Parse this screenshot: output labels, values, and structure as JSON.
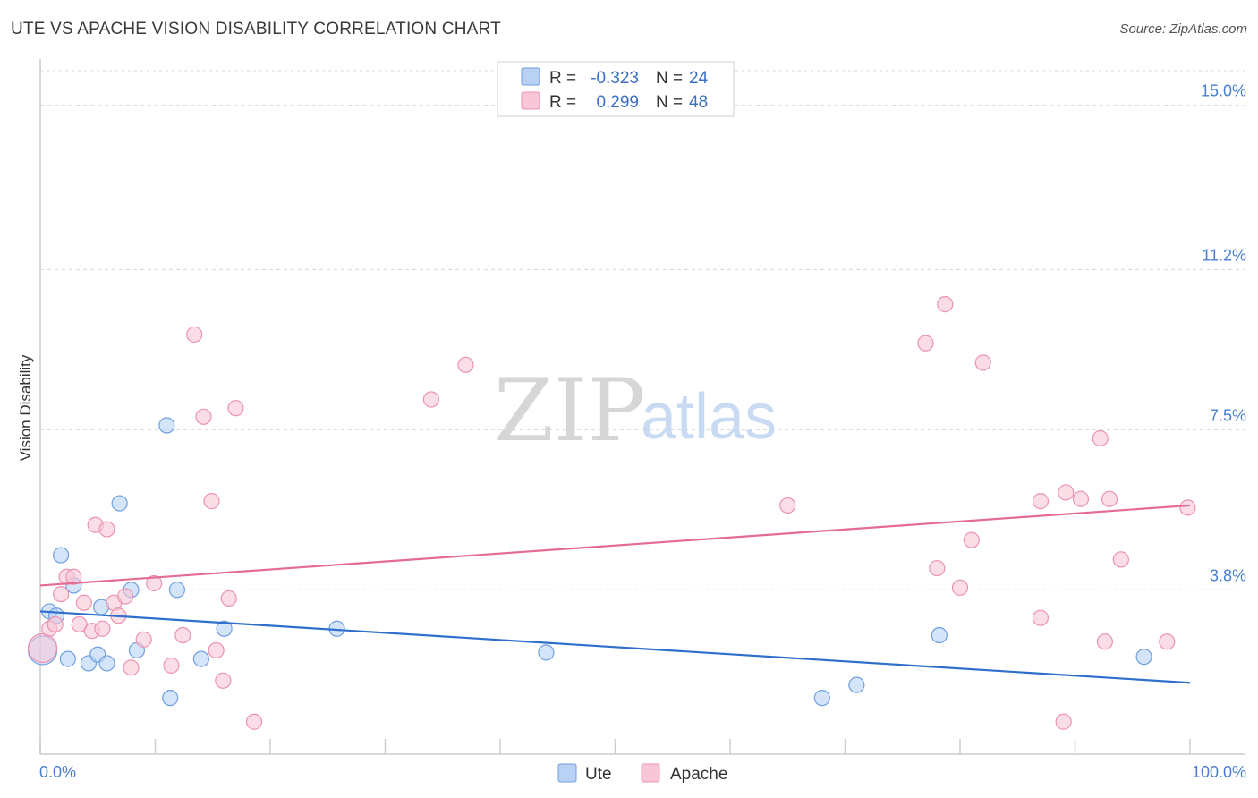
{
  "title": "UTE VS APACHE VISION DISABILITY CORRELATION CHART",
  "source": "Source: ZipAtlas.com",
  "watermark": {
    "zip": "ZIP",
    "atlas": "atlas"
  },
  "colors": {
    "ute_fill": "#b8d2f5",
    "ute_stroke": "#6f9fe0",
    "ute_line": "#2e6fcc",
    "apache_fill": "#f8c6d6",
    "apache_stroke": "#eb93b0",
    "apache_line": "#e36b94",
    "grid": "#d8d8d8",
    "axis": "#cccccc"
  },
  "legend": {
    "rows": [
      {
        "series": "Ute",
        "r_label": "R =",
        "r_value": "-0.323",
        "n_label": "N =",
        "n_value": "24"
      },
      {
        "series": "Apache",
        "r_label": "R =",
        "r_value": "0.299",
        "n_label": "N =",
        "n_value": "48"
      }
    ]
  },
  "chart_data": {
    "type": "scatter",
    "title": "UTE VS APACHE VISION DISABILITY CORRELATION CHART",
    "xlabel": "",
    "ylabel": "Vision Disability",
    "xlim": [
      0,
      100
    ],
    "ylim": [
      0,
      15.8
    ],
    "x_tick_labels": [
      "0.0%",
      "100.0%"
    ],
    "y_ticks": [
      3.8,
      7.5,
      11.2,
      15.0
    ],
    "y_tick_labels": [
      "3.8%",
      "7.5%",
      "11.2%",
      "15.0%"
    ],
    "bottom_legend": [
      "Ute",
      "Apache"
    ],
    "series": [
      {
        "name": "Ute",
        "trend": {
          "x0": 0,
          "y0": 3.3,
          "x1": 100,
          "y1": 1.65
        },
        "points": [
          [
            0.2,
            2.4
          ],
          [
            0.8,
            3.3
          ],
          [
            1.4,
            3.2
          ],
          [
            1.8,
            4.6
          ],
          [
            2.4,
            2.2
          ],
          [
            2.9,
            3.9
          ],
          [
            4.2,
            2.1
          ],
          [
            5.0,
            2.3
          ],
          [
            5.3,
            3.4
          ],
          [
            5.8,
            2.1
          ],
          [
            6.9,
            5.8
          ],
          [
            7.9,
            3.8
          ],
          [
            8.4,
            2.4
          ],
          [
            11.0,
            7.6
          ],
          [
            11.3,
            1.3
          ],
          [
            11.9,
            3.8
          ],
          [
            14.0,
            2.2
          ],
          [
            16.0,
            2.9
          ],
          [
            25.8,
            2.9
          ],
          [
            44.0,
            2.35
          ],
          [
            68.0,
            1.3
          ],
          [
            71.0,
            1.6
          ],
          [
            78.2,
            2.75
          ],
          [
            96.0,
            2.25
          ]
        ]
      },
      {
        "name": "Apache",
        "trend": {
          "x0": 0,
          "y0": 3.9,
          "x1": 100,
          "y1": 5.75
        },
        "points": [
          [
            0.2,
            2.45
          ],
          [
            0.8,
            2.9
          ],
          [
            1.3,
            3.0
          ],
          [
            1.8,
            3.7
          ],
          [
            2.3,
            4.1
          ],
          [
            2.9,
            4.1
          ],
          [
            3.4,
            3.0
          ],
          [
            3.8,
            3.5
          ],
          [
            4.5,
            2.85
          ],
          [
            4.8,
            5.3
          ],
          [
            5.4,
            2.9
          ],
          [
            5.8,
            5.2
          ],
          [
            6.4,
            3.5
          ],
          [
            6.8,
            3.2
          ],
          [
            7.4,
            3.65
          ],
          [
            7.9,
            2.0
          ],
          [
            9.0,
            2.65
          ],
          [
            9.9,
            3.95
          ],
          [
            11.4,
            2.05
          ],
          [
            12.4,
            2.75
          ],
          [
            13.4,
            9.7
          ],
          [
            14.2,
            7.8
          ],
          [
            14.9,
            5.85
          ],
          [
            15.3,
            2.4
          ],
          [
            15.9,
            1.7
          ],
          [
            16.4,
            3.6
          ],
          [
            17.0,
            8.0
          ],
          [
            18.6,
            0.75
          ],
          [
            34.0,
            8.2
          ],
          [
            37.0,
            9.0
          ],
          [
            65.0,
            5.75
          ],
          [
            77.0,
            9.5
          ],
          [
            78.0,
            4.3
          ],
          [
            78.7,
            10.4
          ],
          [
            80.0,
            3.85
          ],
          [
            81.0,
            4.95
          ],
          [
            82.0,
            9.05
          ],
          [
            87.0,
            5.85
          ],
          [
            87.0,
            3.15
          ],
          [
            89.0,
            0.75
          ],
          [
            89.2,
            6.05
          ],
          [
            90.5,
            5.9
          ],
          [
            92.2,
            7.3
          ],
          [
            92.6,
            2.6
          ],
          [
            93.0,
            5.9
          ],
          [
            94.0,
            4.5
          ],
          [
            98.0,
            2.6
          ],
          [
            99.8,
            5.7
          ]
        ]
      }
    ]
  }
}
